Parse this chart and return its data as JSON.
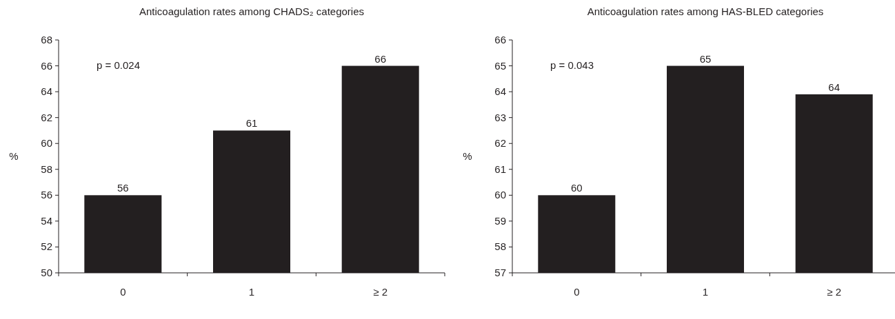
{
  "chart_data": [
    {
      "type": "bar",
      "title": "Anticoagulation rates among CHADS₂ categories",
      "ylabel": "%",
      "categories": [
        "0",
        "1",
        "≥ 2"
      ],
      "values": [
        56,
        61,
        66
      ],
      "color": "#231f20",
      "ylim": [
        50,
        68
      ],
      "yticks": [
        50,
        52,
        54,
        56,
        58,
        60,
        62,
        64,
        66,
        68
      ],
      "data_labels": true,
      "annotations": [
        "p = 0.024"
      ]
    },
    {
      "type": "bar",
      "title": "Anticoagulation rates among HAS-BLED categories",
      "ylabel": "%",
      "categories": [
        "0",
        "1",
        "≥ 2"
      ],
      "values": [
        60,
        65,
        63.9
      ],
      "value_labels": [
        "60",
        "65",
        "64"
      ],
      "color": "#231f20",
      "ylim": [
        57,
        66
      ],
      "yticks": [
        57,
        58,
        59,
        60,
        61,
        62,
        63,
        64,
        65,
        66
      ],
      "annotations": [
        "p = 0.043"
      ]
    }
  ]
}
